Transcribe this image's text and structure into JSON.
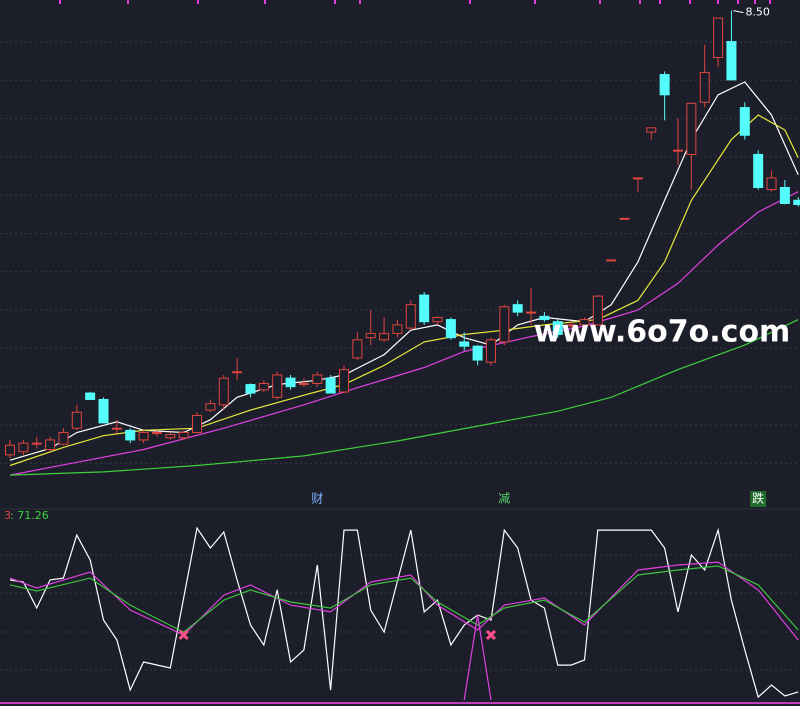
{
  "chart_data": [
    {
      "type": "candlestick",
      "open": [
        4.33,
        4.36,
        4.44,
        4.38,
        4.43,
        4.58,
        4.91,
        4.85,
        4.58,
        4.56,
        4.47,
        4.54,
        4.49,
        4.49,
        4.54,
        4.75,
        4.8,
        5.11,
        4.99,
        4.94,
        4.87,
        5.05,
        5.0,
        5.0,
        5.05,
        4.92,
        5.24,
        5.43,
        5.41,
        5.47,
        5.52,
        5.83,
        5.58,
        5.6,
        5.39,
        5.35,
        5.2,
        5.39,
        5.74,
        5.67,
        5.63,
        5.58,
        5.55,
        5.55,
        5.55,
        6.16,
        6.55,
        6.93,
        7.36,
        7.9,
        7.19,
        7.15,
        7.64,
        8.06,
        8.21,
        7.59,
        7.15,
        6.82,
        6.84,
        6.72
      ],
      "high": [
        4.47,
        4.47,
        4.5,
        4.5,
        4.58,
        4.8,
        4.92,
        4.87,
        4.66,
        4.58,
        4.56,
        4.56,
        4.54,
        4.56,
        4.73,
        4.85,
        5.08,
        5.24,
        5.0,
        5.03,
        5.11,
        5.08,
        5.05,
        5.11,
        5.08,
        5.17,
        5.48,
        5.69,
        5.62,
        5.6,
        5.78,
        5.86,
        5.63,
        5.62,
        5.48,
        5.36,
        5.43,
        5.74,
        5.78,
        5.9,
        5.67,
        5.6,
        5.58,
        5.62,
        5.83,
        6.16,
        6.55,
        6.93,
        7.4,
        7.93,
        7.49,
        7.63,
        8.18,
        8.43,
        8.5,
        7.64,
        7.19,
        7.0,
        6.91,
        6.75
      ],
      "low": [
        4.3,
        4.33,
        4.39,
        4.36,
        4.42,
        4.56,
        4.85,
        4.63,
        4.53,
        4.44,
        4.44,
        4.5,
        4.47,
        4.47,
        4.53,
        4.73,
        4.75,
        5.03,
        4.87,
        4.92,
        4.85,
        4.94,
        4.97,
        4.97,
        4.91,
        4.91,
        5.22,
        5.36,
        5.39,
        5.43,
        5.5,
        5.55,
        5.55,
        5.41,
        5.31,
        5.17,
        5.17,
        5.36,
        5.63,
        5.55,
        5.58,
        5.43,
        5.52,
        5.52,
        5.55,
        6.16,
        6.55,
        6.8,
        7.29,
        7.47,
        7.05,
        6.82,
        7.59,
        7.97,
        7.85,
        7.29,
        6.82,
        6.8,
        6.68,
        6.66
      ],
      "close": [
        4.42,
        4.44,
        4.44,
        4.47,
        4.54,
        4.73,
        4.85,
        4.63,
        4.58,
        4.47,
        4.54,
        4.54,
        4.52,
        4.54,
        4.7,
        4.81,
        5.05,
        5.11,
        4.91,
        5.0,
        5.08,
        4.97,
        5.0,
        5.08,
        4.91,
        5.13,
        5.41,
        5.47,
        5.47,
        5.55,
        5.74,
        5.58,
        5.62,
        5.43,
        5.35,
        5.22,
        5.41,
        5.72,
        5.67,
        5.67,
        5.6,
        5.46,
        5.55,
        5.6,
        5.82,
        6.16,
        6.55,
        6.93,
        7.4,
        7.71,
        7.19,
        7.63,
        7.92,
        8.43,
        7.85,
        7.33,
        6.84,
        6.93,
        6.69,
        6.68
      ],
      "up_color": "#e0443f",
      "down_color": "#54fcfc",
      "ylim": [
        4.0,
        8.6
      ],
      "high_label": "8.50",
      "high_label_index": 54,
      "markers": [
        {
          "index": 23,
          "text": "财",
          "color": "#7fb2ff"
        },
        {
          "index": 37,
          "text": "减",
          "color": "#52d36a"
        },
        {
          "index": 56,
          "text": "跌",
          "color": "#52d36a"
        }
      ],
      "lines": [
        {
          "color": "#ffffff",
          "x": [
            0,
            3,
            5,
            8,
            10,
            13,
            15,
            17,
            20,
            23,
            25,
            28,
            30,
            32,
            34,
            36,
            38,
            40,
            43,
            45,
            47,
            49,
            51,
            53,
            55,
            57,
            59
          ],
          "values": [
            4.28,
            4.39,
            4.54,
            4.64,
            4.56,
            4.54,
            4.66,
            4.87,
            4.99,
            5.03,
            5.08,
            5.27,
            5.5,
            5.55,
            5.43,
            5.36,
            5.55,
            5.62,
            5.58,
            5.74,
            6.14,
            6.72,
            7.29,
            7.71,
            7.83,
            7.52,
            6.96
          ]
        },
        {
          "color": "#e8e83a",
          "x": [
            0,
            4,
            7,
            10,
            14,
            18,
            22,
            25,
            28,
            31,
            34,
            37,
            40,
            44,
            47,
            49,
            51,
            54,
            56,
            58,
            59
          ],
          "values": [
            4.23,
            4.4,
            4.51,
            4.56,
            4.58,
            4.75,
            4.89,
            4.99,
            5.17,
            5.39,
            5.46,
            5.5,
            5.55,
            5.6,
            5.78,
            6.14,
            6.72,
            7.29,
            7.52,
            7.38,
            7.12
          ]
        },
        {
          "color": "#e040e0",
          "x": [
            0,
            5,
            10,
            16,
            22,
            26,
            31,
            34,
            39,
            43,
            47,
            50,
            53,
            56,
            59
          ],
          "values": [
            4.14,
            4.26,
            4.38,
            4.58,
            4.8,
            4.96,
            5.15,
            5.3,
            5.44,
            5.54,
            5.69,
            5.94,
            6.3,
            6.61,
            6.8
          ]
        },
        {
          "color": "#3cd03c",
          "x": [
            0,
            7,
            14,
            22,
            29,
            35,
            41,
            45,
            50,
            55,
            59
          ],
          "values": [
            4.14,
            4.17,
            4.23,
            4.32,
            4.46,
            4.6,
            4.74,
            4.87,
            5.13,
            5.36,
            5.6
          ]
        }
      ],
      "watermark": "www.6o7o.com"
    },
    {
      "type": "line",
      "label": ": 71.26",
      "label_color": "#3cd03c",
      "ylim": [
        0,
        100
      ],
      "series": [
        {
          "color": "#ffffff",
          "x": [
            0,
            1,
            2,
            3,
            4,
            5,
            6,
            7,
            8,
            9,
            10,
            12,
            14,
            15,
            16,
            17,
            18,
            19,
            20,
            21,
            22,
            23,
            24,
            25,
            26,
            27,
            28,
            30,
            31,
            32,
            33,
            34,
            35,
            36,
            37,
            38,
            39,
            40,
            41,
            42,
            43,
            44,
            45,
            48,
            49,
            50,
            51,
            52,
            53,
            54,
            55,
            56,
            57,
            58,
            59
          ],
          "values": [
            69.8,
            68.6,
            53.5,
            69.8,
            70.9,
            95.9,
            81.4,
            46.5,
            34.9,
            5.8,
            22.1,
            18.6,
            100,
            88.4,
            97.7,
            69.8,
            43.6,
            32.0,
            64.0,
            22.1,
            29.1,
            78.5,
            5.8,
            98.8,
            98.8,
            52.3,
            39.5,
            98.8,
            51.2,
            58.1,
            32.0,
            43.6,
            49.4,
            46.5,
            98.8,
            88.4,
            58.1,
            53.5,
            20.3,
            20.3,
            23.3,
            98.8,
            98.8,
            98.8,
            88.4,
            51.2,
            84.3,
            75.6,
            98.8,
            58.1,
            29.1,
            1.7,
            8.7,
            2.3,
            4.7
          ]
        },
        {
          "color": "#e040e0",
          "x": [
            0,
            2,
            6,
            9,
            13,
            16,
            18,
            21,
            24,
            27,
            30,
            32,
            35,
            37,
            40,
            43,
            47,
            50,
            53,
            56,
            59
          ],
          "values": [
            70.9,
            65.1,
            74.4,
            52.3,
            37.8,
            61.0,
            66.9,
            55.2,
            51.2,
            68.6,
            72.7,
            55.2,
            40.7,
            55.2,
            59.3,
            43.6,
            75.6,
            78.5,
            80.2,
            64.0,
            34.9
          ]
        },
        {
          "color": "#40c040",
          "x": [
            0,
            2,
            6,
            9,
            13,
            16,
            18,
            21,
            24,
            27,
            30,
            32,
            35,
            37,
            40,
            43,
            47,
            50,
            53,
            56,
            59
          ],
          "values": [
            66.9,
            63.4,
            70.9,
            55.2,
            39.5,
            58.1,
            64.0,
            57.0,
            53.5,
            66.9,
            70.9,
            57.0,
            43.6,
            53.5,
            58.1,
            45.3,
            72.7,
            75.6,
            77.9,
            66.9,
            40.7
          ]
        },
        {
          "color": "#e040e0",
          "x": [
            34,
            35,
            36
          ],
          "values": [
            0,
            49.4,
            0
          ]
        }
      ],
      "crosses": {
        "color": "#ff4f8b",
        "x": [
          13,
          36
        ],
        "values": [
          37.8,
          37.8
        ]
      }
    }
  ]
}
